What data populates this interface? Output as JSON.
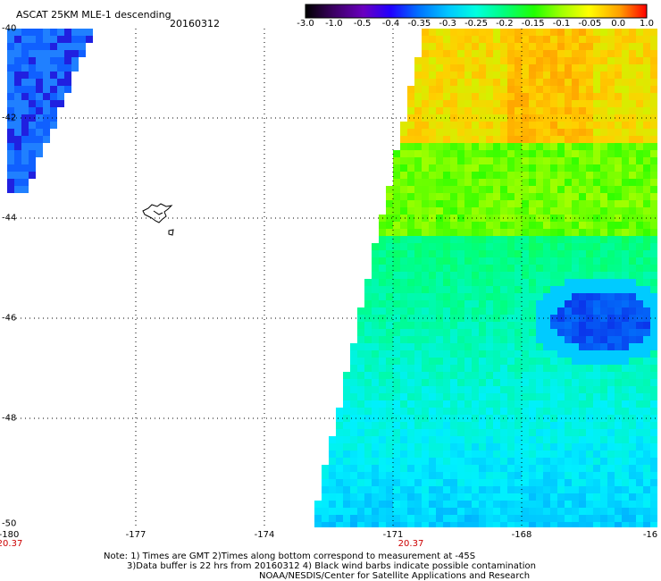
{
  "title": "ASCAT 25KM MLE-1 descending",
  "date": "20160312",
  "colorbar": {
    "labels": [
      "-3.0",
      "-1.0",
      "-0.5",
      "-0.4",
      "-0.35",
      "-0.3",
      "-0.25",
      "-0.2",
      "-0.15",
      "-0.1",
      "-0.05",
      "0.0",
      "1.0"
    ],
    "colors": [
      "#000000",
      "#2a0040",
      "#6a00b0",
      "#3a00ff",
      "#0050ff",
      "#00a0ff",
      "#00e8ff",
      "#00ffb0",
      "#00ff30",
      "#70ff00",
      "#e0ff00",
      "#ffa000",
      "#ff1000"
    ]
  },
  "axes": {
    "x_ticks": [
      "-180",
      "-177",
      "-174",
      "-171",
      "-168",
      "-16"
    ],
    "y_ticks": [
      "-40",
      "-42",
      "-44",
      "-46",
      "-48",
      "-50"
    ],
    "time_marks": [
      "20.37",
      "20.37"
    ]
  },
  "notes": [
    "Note: 1) Times are GMT 2)Times along bottom correspond to measurement at -45S",
    "3)Data buffer is 22 hrs from 20160312 4) Black wind barbs indicate possible contamination",
    "NOAA/NESDIS/Center for Satellite Applications and Research"
  ]
}
